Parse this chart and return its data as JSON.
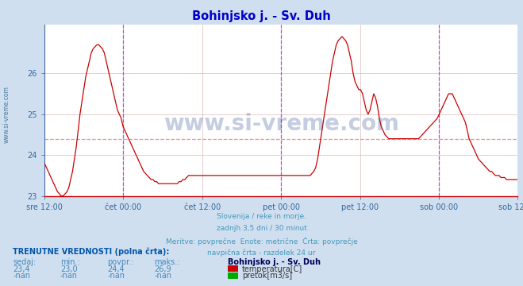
{
  "title": "Bohinjsko j. - Sv. Duh",
  "title_color": "#0000cc",
  "bg_color": "#d0dff0",
  "plot_bg_color": "#ffffff",
  "line_color": "#cc0000",
  "avg_line_color": "#ff8888",
  "avg_line_value": 24.4,
  "vline_color": "#cc44cc",
  "bottom_text_color": "#4499bb",
  "y_min": 23.0,
  "y_max": 27.2,
  "yticks": [
    23,
    24,
    25,
    26
  ],
  "tick_label_color": "#336699",
  "grid_color": "#ddbbbb",
  "watermark": "www.si-vreme.com",
  "watermark_color": "#1a3a8a",
  "left_label": "www.si-vreme.com",
  "bottom_lines": [
    "Slovenija / reke in morje.",
    "zadnjh 3,5 dni / 30 minut",
    "Meritve: povprečne  Enote: metrične  Črta: povprečje",
    "navpična črta - razdelek 24 ur"
  ],
  "table_header": "TRENUTNE VREDNOSTI (polna črta):",
  "table_cols": [
    "sedaj:",
    "min.:",
    "povpr.:",
    "maks.:"
  ],
  "table_row1": [
    "23,4",
    "23,0",
    "24,4",
    "26,9"
  ],
  "table_row2": [
    "-nan",
    "-nan",
    "-nan",
    "-nan"
  ],
  "legend_station": "Bohinjsko j. - Sv. Duh",
  "legend_temp": "temperatura[C]",
  "legend_flow": "pretok[m3/s]",
  "legend_temp_color": "#cc0000",
  "legend_flow_color": "#00aa00",
  "x_labels": [
    "sre 12:00",
    "čet 00:00",
    "čet 12:00",
    "pet 00:00",
    "pet 12:00",
    "sob 00:00",
    "sob 12:00"
  ],
  "midnight_vlines": [
    1,
    3,
    5
  ],
  "temp_data": [
    23.8,
    23.7,
    23.6,
    23.5,
    23.4,
    23.3,
    23.2,
    23.1,
    23.05,
    23.0,
    23.0,
    23.05,
    23.1,
    23.2,
    23.4,
    23.6,
    23.9,
    24.2,
    24.6,
    25.0,
    25.3,
    25.6,
    25.9,
    26.1,
    26.3,
    26.5,
    26.6,
    26.65,
    26.7,
    26.7,
    26.65,
    26.6,
    26.5,
    26.3,
    26.1,
    25.9,
    25.7,
    25.5,
    25.3,
    25.1,
    25.0,
    24.9,
    24.7,
    24.6,
    24.5,
    24.4,
    24.3,
    24.2,
    24.1,
    24.0,
    23.9,
    23.8,
    23.7,
    23.6,
    23.55,
    23.5,
    23.45,
    23.4,
    23.4,
    23.35,
    23.35,
    23.3,
    23.3,
    23.3,
    23.3,
    23.3,
    23.3,
    23.3,
    23.3,
    23.3,
    23.3,
    23.3,
    23.35,
    23.35,
    23.4,
    23.4,
    23.45,
    23.5,
    23.5,
    23.5,
    23.5,
    23.5,
    23.5,
    23.5,
    23.5,
    23.5,
    23.5,
    23.5,
    23.5,
    23.5,
    23.5,
    23.5,
    23.5,
    23.5,
    23.5,
    23.5,
    23.5,
    23.5,
    23.5,
    23.5,
    23.5,
    23.5,
    23.5,
    23.5,
    23.5,
    23.5,
    23.5,
    23.5,
    23.5,
    23.5,
    23.5,
    23.5,
    23.5,
    23.5,
    23.5,
    23.5,
    23.5,
    23.5,
    23.5,
    23.5,
    23.5,
    23.5,
    23.5,
    23.5,
    23.5,
    23.5,
    23.5,
    23.5,
    23.5,
    23.5,
    23.5,
    23.5,
    23.5,
    23.5,
    23.5,
    23.5,
    23.5,
    23.5,
    23.5,
    23.5,
    23.5,
    23.5,
    23.5,
    23.55,
    23.6,
    23.7,
    23.9,
    24.2,
    24.5,
    24.8,
    25.1,
    25.4,
    25.7,
    26.0,
    26.3,
    26.5,
    26.7,
    26.8,
    26.85,
    26.9,
    26.85,
    26.8,
    26.7,
    26.5,
    26.3,
    26.0,
    25.8,
    25.7,
    25.6,
    25.6,
    25.5,
    25.3,
    25.1,
    25.0,
    25.1,
    25.3,
    25.5,
    25.4,
    25.2,
    24.9,
    24.7,
    24.6,
    24.5,
    24.45,
    24.4,
    24.4,
    24.4,
    24.4,
    24.4,
    24.4,
    24.4,
    24.4,
    24.4,
    24.4,
    24.4,
    24.4,
    24.4,
    24.4,
    24.4,
    24.4,
    24.4,
    24.45,
    24.5,
    24.55,
    24.6,
    24.65,
    24.7,
    24.75,
    24.8,
    24.85,
    24.9,
    25.0,
    25.1,
    25.2,
    25.3,
    25.4,
    25.5,
    25.5,
    25.5,
    25.4,
    25.3,
    25.2,
    25.1,
    25.0,
    24.9,
    24.8,
    24.6,
    24.4,
    24.3,
    24.2,
    24.1,
    24.0,
    23.9,
    23.85,
    23.8,
    23.75,
    23.7,
    23.65,
    23.6,
    23.6,
    23.55,
    23.5,
    23.5,
    23.5,
    23.45,
    23.45,
    23.45,
    23.4,
    23.4,
    23.4,
    23.4,
    23.4,
    23.4,
    23.4
  ]
}
